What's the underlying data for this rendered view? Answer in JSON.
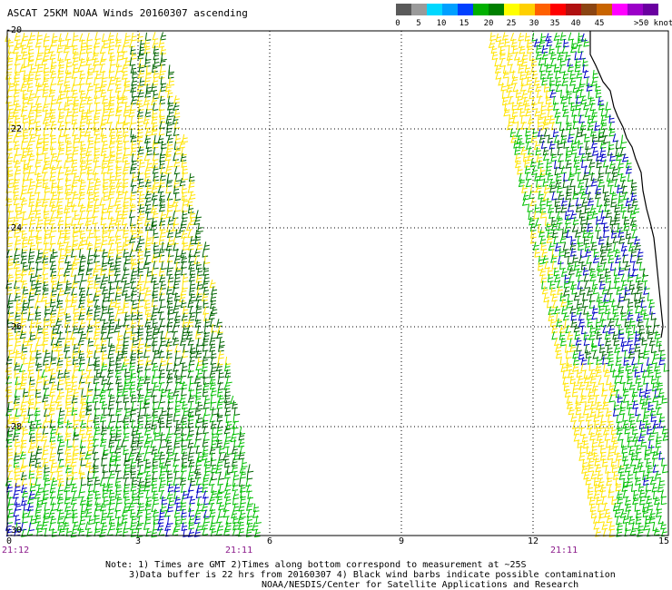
{
  "title": "ASCAT 25KM NOAA Winds 20160307 ascending",
  "colorbar": {
    "colors": [
      "#5a5a5a",
      "#9a9a9a",
      "#00d8ff",
      "#00a0ff",
      "#0040ff",
      "#00b000",
      "#008000",
      "#ffff00",
      "#ffd000",
      "#ff6000",
      "#ff0000",
      "#b01010",
      "#8b4513",
      "#c86400",
      "#ff00ff",
      "#9b00c8",
      "#6a00a0"
    ],
    "labels": [
      "0",
      "5",
      "10",
      "15",
      "20",
      "25",
      "30",
      "35",
      "40",
      "45",
      ">50 knots"
    ],
    "legend_colors": {
      "0-5": "#808080",
      "5-10": "#00ccff",
      "10-15": "#0000cc",
      "15-20": "#00a000",
      "20-25": "#ffff00",
      "25-30": "#ff8000",
      "30-35": "#ff0000",
      "35-40": "#8b4513",
      "40-45": "#ff00ff",
      "45-50": "#800080"
    }
  },
  "axes": {
    "y_labels": [
      "-20",
      "-22",
      "-24",
      "-26",
      "-28",
      "-30"
    ],
    "x_labels": [
      "0",
      "3",
      "6",
      "9",
      "12",
      "15"
    ],
    "time_labels": [
      "21:12",
      "21:11",
      "21:11"
    ]
  },
  "notes": [
    "Note: 1) Times are GMT 2)Times along bottom correspond to measurement at ~25S",
    "3)Data buffer is 22 hrs from 20160307 4) Black wind barbs indicate possible contamination",
    "NOAA/NESDIS/Center for Satellite Applications and Research"
  ],
  "wind_colors": {
    "light_green": "#00c000",
    "dark_green": "#006400",
    "yellow": "#ffe400",
    "blue": "#0000c8",
    "coast": "#000000"
  }
}
